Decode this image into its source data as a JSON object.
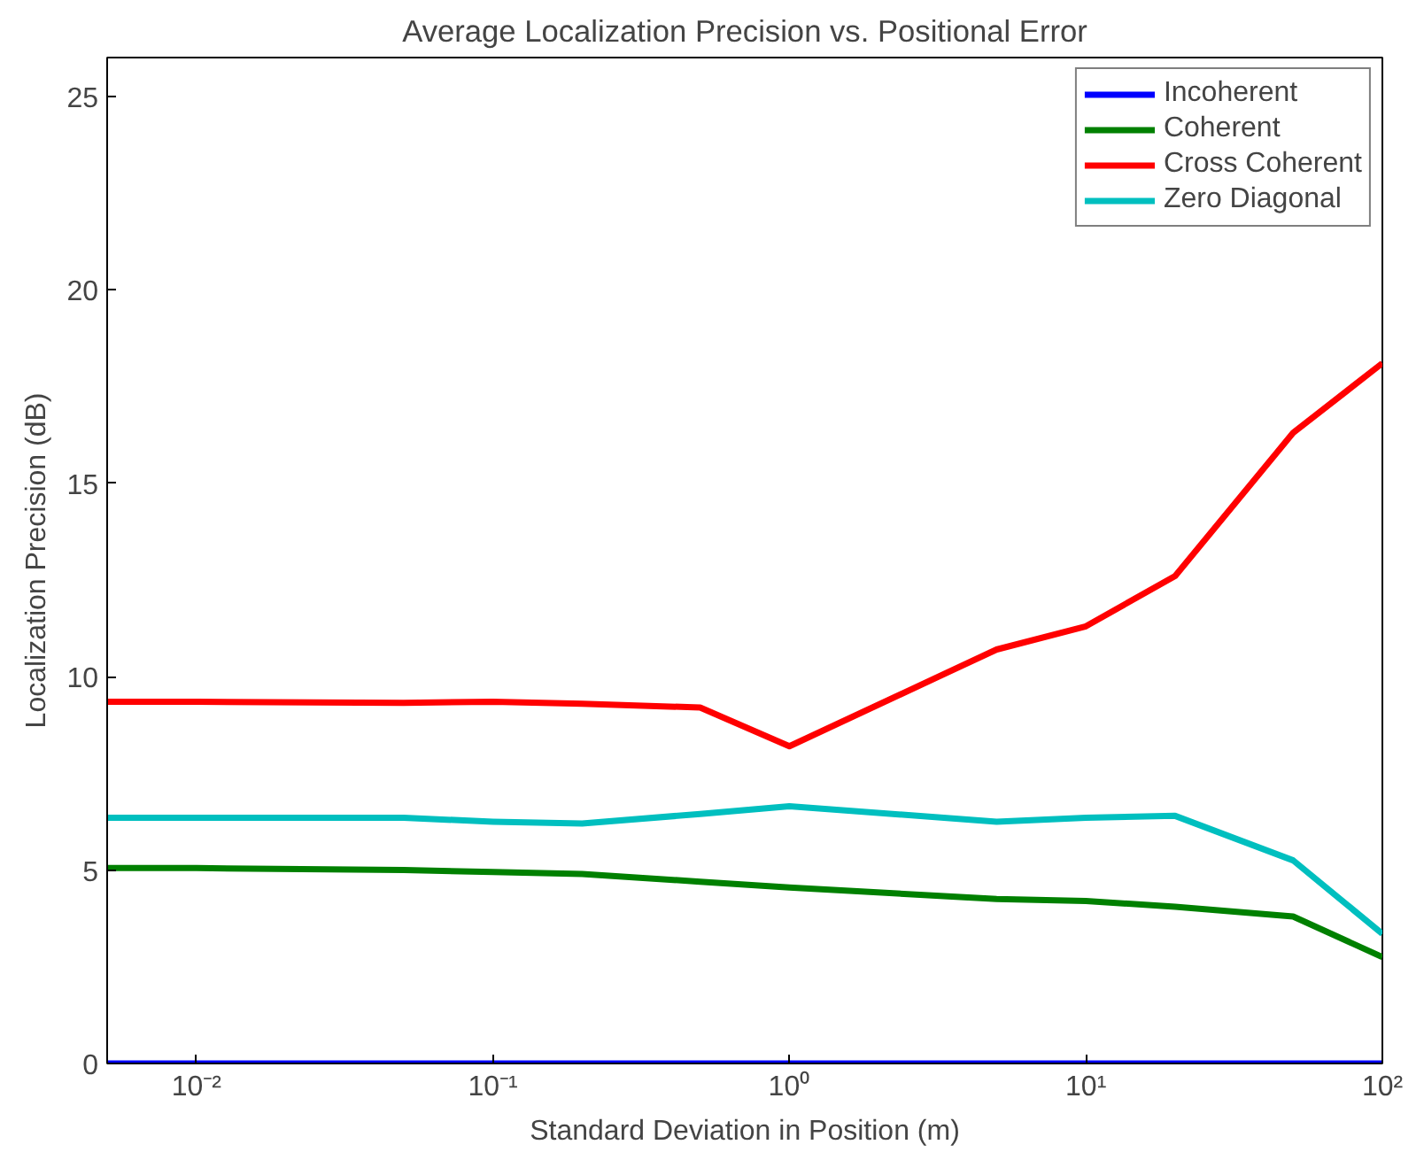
{
  "chart_data": {
    "type": "line",
    "title": "Average Localization Precision vs. Positional Error",
    "xlabel": "Standard Deviation in Position (m)",
    "ylabel": "Localization Precision (dB)",
    "log": "x",
    "x": [
      0.005,
      0.01,
      0.05,
      0.1,
      0.2,
      0.5,
      1,
      5,
      10,
      20,
      50,
      100
    ],
    "xlim": [
      0.005,
      100
    ],
    "ylim": [
      0,
      26
    ],
    "xticks": [
      {
        "value": 0.01,
        "label": "10⁻²"
      },
      {
        "value": 0.1,
        "label": "10⁻¹"
      },
      {
        "value": 1,
        "label": "10⁰"
      },
      {
        "value": 10,
        "label": "10¹"
      },
      {
        "value": 100,
        "label": "10²"
      }
    ],
    "yticks": [
      0,
      5,
      10,
      15,
      20,
      25
    ],
    "grid": false,
    "legend": "top right",
    "line_style": "solid",
    "marker": "none",
    "series": [
      {
        "name": "Incoherent",
        "color": "#0000ff",
        "values": [
          0,
          0,
          0,
          0,
          0,
          0,
          0,
          0,
          0,
          0,
          0,
          0
        ]
      },
      {
        "name": "Coherent",
        "color": "#008000",
        "values": [
          5.05,
          5.05,
          5.0,
          4.95,
          4.9,
          4.7,
          4.55,
          4.25,
          4.2,
          4.05,
          3.8,
          2.75
        ]
      },
      {
        "name": "Cross Coherent",
        "color": "#ff0000",
        "values": [
          9.35,
          9.35,
          9.32,
          9.35,
          9.3,
          9.2,
          8.2,
          10.7,
          11.3,
          12.6,
          16.3,
          18.1
        ]
      },
      {
        "name": "Zero Diagonal",
        "color": "#00bfbf",
        "values": [
          6.35,
          6.35,
          6.35,
          6.25,
          6.2,
          6.45,
          6.65,
          6.25,
          6.35,
          6.4,
          5.25,
          3.35
        ]
      }
    ]
  }
}
